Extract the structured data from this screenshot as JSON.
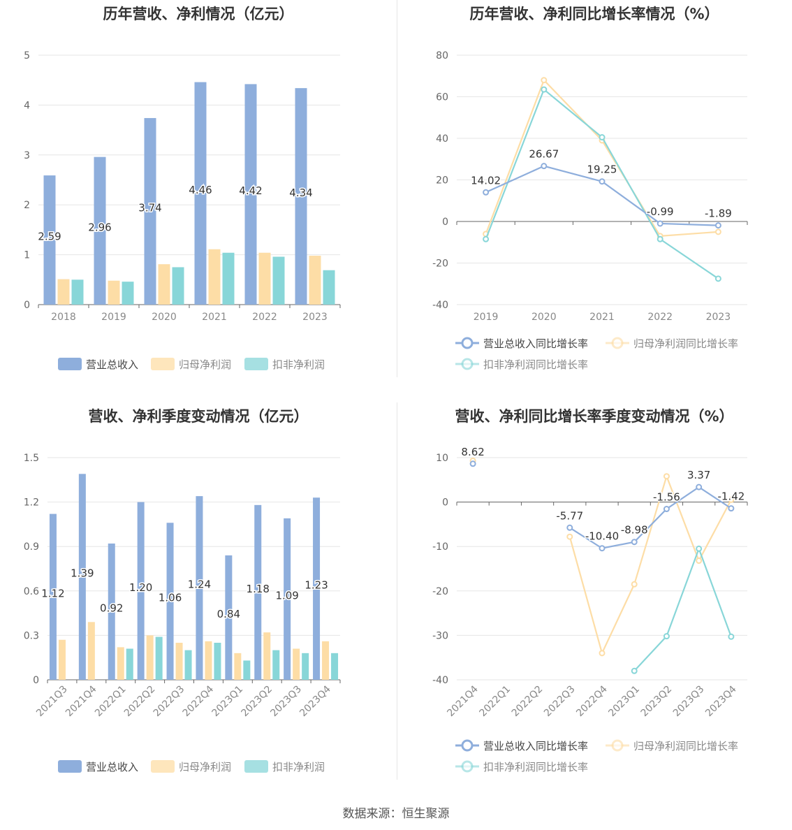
{
  "source": "数据来源：恒生聚源",
  "colors": {
    "revenue": "#8eaedc",
    "parent_profit": "#fddda6",
    "deducted_profit": "#88d6d8",
    "axis": "#666666",
    "grid": "#e6e6e6"
  },
  "chart_data": [
    {
      "id": "annual-bars",
      "type": "bar",
      "title": "历年营收、净利情况（亿元）",
      "categories": [
        "2018",
        "2019",
        "2020",
        "2021",
        "2022",
        "2023"
      ],
      "ylim": [
        0,
        5
      ],
      "yticks": [
        "0",
        "1",
        "2",
        "3",
        "4",
        "5"
      ],
      "series": [
        {
          "name": "营业总收入",
          "values": [
            2.59,
            2.96,
            3.74,
            4.46,
            4.42,
            4.34
          ],
          "labels": [
            "2.59",
            "2.96",
            "3.74",
            "4.46",
            "4.42",
            "4.34"
          ]
        },
        {
          "name": "归母净利润",
          "values": [
            0.51,
            0.48,
            0.81,
            1.11,
            1.04,
            0.98
          ]
        },
        {
          "name": "扣非净利润",
          "values": [
            0.5,
            0.46,
            0.75,
            1.04,
            0.96,
            0.69
          ]
        }
      ],
      "legend": "bottom-center",
      "grid": true
    },
    {
      "id": "annual-growth",
      "type": "line",
      "title": "历年营收、净利同比增长率情况（%）",
      "categories": [
        "2019",
        "2020",
        "2021",
        "2022",
        "2023"
      ],
      "ylim": [
        -40,
        80
      ],
      "yticks": [
        "-40",
        "-20",
        "0",
        "20",
        "40",
        "60",
        "80"
      ],
      "series": [
        {
          "name": "营业总收入同比增长率",
          "values": [
            14.02,
            26.67,
            19.25,
            -0.99,
            -1.89
          ],
          "labels": [
            "14.02",
            "26.67",
            "19.25",
            "-0.99",
            "-1.89"
          ]
        },
        {
          "name": "归母净利润同比增长率",
          "values": [
            -6.0,
            68.0,
            39.0,
            -7.0,
            -5.0
          ]
        },
        {
          "name": "扣非净利润同比增长率",
          "values": [
            -8.5,
            63.5,
            40.5,
            -8.5,
            -27.5
          ]
        }
      ],
      "legend": "bottom-center",
      "grid": true
    },
    {
      "id": "quarter-bars",
      "type": "bar",
      "title": "营收、净利季度变动情况（亿元）",
      "categories": [
        "2021Q3",
        "2021Q4",
        "2022Q1",
        "2022Q2",
        "2022Q3",
        "2022Q4",
        "2023Q1",
        "2023Q2",
        "2023Q3",
        "2023Q4"
      ],
      "ylim": [
        0,
        1.5
      ],
      "yticks": [
        "0",
        "0.3",
        "0.6",
        "0.9",
        "1.2",
        "1.5"
      ],
      "series": [
        {
          "name": "营业总收入",
          "values": [
            1.12,
            1.39,
            0.92,
            1.2,
            1.06,
            1.24,
            0.84,
            1.18,
            1.09,
            1.23
          ],
          "labels": [
            "1.12",
            "1.39",
            "0.92",
            "1.20",
            "1.06",
            "1.24",
            "0.84",
            "1.18",
            "1.09",
            "1.23"
          ]
        },
        {
          "name": "归母净利润",
          "values": [
            0.27,
            0.39,
            0.22,
            0.3,
            0.25,
            0.26,
            0.18,
            0.32,
            0.21,
            0.26
          ]
        },
        {
          "name": "扣非净利润",
          "values": [
            null,
            null,
            0.21,
            0.29,
            0.2,
            0.25,
            0.13,
            0.2,
            0.18,
            0.18
          ]
        }
      ],
      "legend": "bottom-center",
      "grid": true
    },
    {
      "id": "quarter-growth",
      "type": "line",
      "title": "营收、净利同比增长率季度变动情况（%）",
      "categories": [
        "2021Q4",
        "2022Q1",
        "2022Q2",
        "2022Q3",
        "2022Q4",
        "2023Q1",
        "2023Q2",
        "2023Q3",
        "2023Q4"
      ],
      "ylim": [
        -40,
        10
      ],
      "yticks": [
        "-40",
        "-30",
        "-20",
        "-10",
        "0",
        "10"
      ],
      "series": [
        {
          "name": "营业总收入同比增长率",
          "values": [
            8.62,
            null,
            null,
            -5.77,
            -10.4,
            -8.98,
            -1.56,
            3.37,
            -1.42
          ],
          "labels": [
            "8.62",
            "",
            "",
            "-5.77",
            "-10.40",
            "-8.98",
            "-1.56",
            "3.37",
            "-1.42"
          ]
        },
        {
          "name": "归母净利润同比增长率",
          "values": [
            9.3,
            null,
            null,
            -7.8,
            -34.0,
            -18.5,
            5.8,
            -13.2,
            0.5
          ]
        },
        {
          "name": "扣非净利润同比增长率",
          "values": [
            null,
            null,
            null,
            null,
            null,
            -38.0,
            -30.2,
            -10.5,
            -30.3
          ]
        }
      ],
      "legend": "bottom-center",
      "grid": true
    }
  ]
}
